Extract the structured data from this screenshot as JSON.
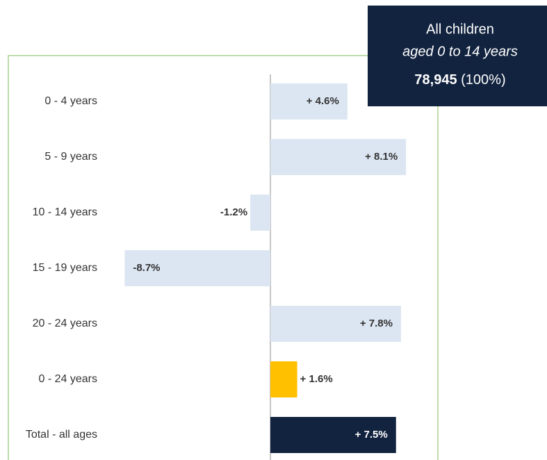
{
  "chart_data": {
    "type": "bar",
    "orientation": "horizontal",
    "categories": [
      "0 - 4 years",
      "5 - 9 years",
      "10 - 14 years",
      "15 - 19 years",
      "20 - 24 years",
      "0 - 24 years",
      "Total - all ages"
    ],
    "values": [
      4.6,
      8.1,
      -1.2,
      -8.7,
      7.8,
      1.6,
      7.5
    ],
    "value_labels": [
      "+ 4.6%",
      "+ 8.1%",
      "-1.2%",
      "-8.7%",
      "+ 7.8%",
      "+ 1.6%",
      "+ 7.5%"
    ],
    "colors": [
      "#dce6f2",
      "#dce6f2",
      "#dce6f2",
      "#dce6f2",
      "#dce6f2",
      "#ffc000",
      "#12233f"
    ],
    "label_colors": [
      "#333333",
      "#333333",
      "#333333",
      "#333333",
      "#333333",
      "#333333",
      "#ffffff"
    ],
    "annotation": {
      "line1": "All children",
      "line2": "aged 0 to 14 years",
      "total": "78,945",
      "share": "(100%)"
    }
  }
}
